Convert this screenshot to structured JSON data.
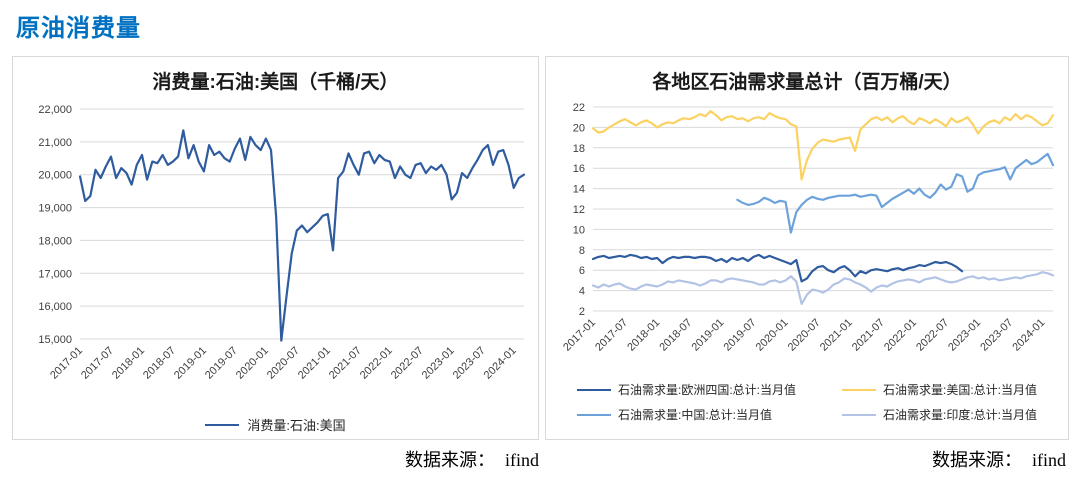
{
  "page": {
    "title": "原油消费量",
    "title_color": "#0070C0"
  },
  "sources": {
    "left": {
      "label": "数据来源：",
      "value": "ifind"
    },
    "right": {
      "label": "数据来源：",
      "value": "ifind"
    }
  },
  "colors": {
    "grid": "#D9D9D9",
    "axis_text": "#404040",
    "panel_border": "#D9D9D9"
  },
  "chart_data": [
    {
      "type": "line",
      "title": "消费量:石油:美国（千桶/天）",
      "ylabel": "",
      "ylim": [
        15000,
        22000
      ],
      "ystep": 1000,
      "y_tick_format": "comma",
      "grid": true,
      "legend_position": "bottom",
      "n_points": 87,
      "tick_every": 6,
      "x_tick_labels": [
        "2017-01",
        "2017-07",
        "2018-01",
        "2018-07",
        "2019-01",
        "2019-07",
        "2020-01",
        "2020-07",
        "2021-01",
        "2021-07",
        "2022-01",
        "2022-07",
        "2023-01",
        "2023-07",
        "2024-01"
      ],
      "series": [
        {
          "name": "消费量:石油:美国",
          "color": "#2F5B9F",
          "start": 0,
          "values": [
            19950,
            19200,
            19350,
            20150,
            19900,
            20250,
            20550,
            19900,
            20200,
            20050,
            19700,
            20300,
            20600,
            19850,
            20400,
            20350,
            20600,
            20300,
            20400,
            20550,
            21350,
            20500,
            20900,
            20400,
            20100,
            20900,
            20600,
            20700,
            20500,
            20400,
            20800,
            21100,
            20450,
            21150,
            20900,
            20750,
            21100,
            20750,
            18700,
            14950,
            16300,
            17600,
            18300,
            18450,
            18250,
            18400,
            18550,
            18750,
            18800,
            17700,
            19900,
            20100,
            20650,
            20300,
            20000,
            20650,
            20700,
            20350,
            20600,
            20450,
            20400,
            19900,
            20250,
            20000,
            19900,
            20300,
            20350,
            20050,
            20250,
            20150,
            20300,
            20000,
            19250,
            19450,
            20050,
            19900,
            20200,
            20450,
            20750,
            20900,
            20300,
            20700,
            20750,
            20300,
            19600,
            19900,
            20000
          ]
        }
      ]
    },
    {
      "type": "line",
      "title": "各地区石油需求量总计（百万桶/天）",
      "ylabel": "",
      "ylim": [
        2,
        22
      ],
      "ystep": 2,
      "y_tick_format": "plain",
      "grid": true,
      "legend_position": "bottom",
      "n_points": 87,
      "tick_every": 6,
      "x_tick_labels": [
        "2017-01",
        "2017-07",
        "2018-01",
        "2018-07",
        "2019-01",
        "2019-07",
        "2020-01",
        "2020-07",
        "2021-01",
        "2021-07",
        "2022-01",
        "2022-07",
        "2023-01",
        "2023-07",
        "2024-01"
      ],
      "series": [
        {
          "name": "石油需求量:欧洲四国:总计:当月值",
          "color": "#2F5B9F",
          "start": 0,
          "values": [
            7.1,
            7.3,
            7.4,
            7.2,
            7.3,
            7.4,
            7.3,
            7.5,
            7.4,
            7.2,
            7.3,
            7.1,
            7.2,
            6.7,
            7.1,
            7.3,
            7.2,
            7.3,
            7.3,
            7.2,
            7.3,
            7.3,
            7.2,
            6.9,
            7.1,
            6.8,
            7.2,
            7.0,
            7.2,
            6.9,
            7.3,
            7.5,
            7.2,
            7.4,
            7.2,
            7.0,
            6.8,
            6.6,
            7.0,
            4.9,
            5.2,
            5.9,
            6.3,
            6.4,
            6.0,
            5.8,
            6.2,
            6.4,
            6.0,
            5.4,
            5.9,
            5.7,
            6.0,
            6.1,
            6.0,
            5.9,
            6.1,
            6.2,
            6.0,
            6.2,
            6.3,
            6.5,
            6.4,
            6.6,
            6.8,
            6.7,
            6.8,
            6.6,
            6.3,
            5.9
          ]
        },
        {
          "name": "石油需求量:美国:总计:当月值",
          "color": "#FBD262",
          "start": 0,
          "values": [
            19.9,
            19.5,
            19.6,
            20.0,
            20.3,
            20.6,
            20.8,
            20.5,
            20.2,
            20.5,
            20.7,
            20.4,
            20.0,
            20.3,
            20.5,
            20.4,
            20.7,
            20.9,
            20.8,
            21.0,
            21.3,
            21.1,
            21.6,
            21.2,
            20.7,
            21.0,
            21.1,
            20.8,
            20.9,
            20.6,
            20.9,
            21.0,
            20.8,
            21.4,
            21.1,
            20.9,
            20.8,
            20.3,
            20.1,
            14.9,
            16.8,
            17.9,
            18.5,
            18.8,
            18.7,
            18.6,
            18.8,
            18.9,
            19.0,
            17.7,
            19.8,
            20.3,
            20.8,
            21.0,
            20.7,
            21.0,
            20.5,
            20.9,
            21.1,
            20.6,
            20.3,
            20.9,
            20.7,
            20.4,
            20.8,
            20.5,
            20.1,
            20.9,
            20.5,
            20.7,
            21.0,
            20.3,
            19.4,
            20.1,
            20.5,
            20.7,
            20.4,
            21.0,
            20.7,
            21.3,
            20.8,
            21.2,
            21.0,
            20.6,
            20.2,
            20.4,
            21.2
          ]
        },
        {
          "name": "石油需求量:中国:总计:当月值",
          "color": "#6CA2DC",
          "start": 27,
          "values": [
            12.9,
            12.6,
            12.4,
            12.5,
            12.7,
            13.1,
            12.9,
            12.6,
            12.8,
            12.7,
            9.7,
            11.7,
            12.4,
            12.9,
            13.2,
            13.0,
            12.9,
            13.1,
            13.2,
            13.3,
            13.3,
            13.3,
            13.4,
            13.2,
            13.3,
            13.4,
            13.3,
            12.2,
            12.6,
            13.0,
            13.3,
            13.6,
            13.9,
            13.5,
            14.0,
            13.4,
            13.1,
            13.6,
            14.4,
            13.9,
            14.2,
            15.4,
            15.2,
            13.7,
            14.0,
            15.3,
            15.6,
            15.7,
            15.8,
            15.9,
            16.1,
            14.9,
            16.0,
            16.4,
            16.8,
            16.4,
            16.6,
            17.0,
            17.4,
            16.3
          ]
        },
        {
          "name": "石油需求量:印度:总计:当月值",
          "color": "#B3C3E5",
          "start": 0,
          "values": [
            4.5,
            4.3,
            4.6,
            4.4,
            4.6,
            4.7,
            4.4,
            4.2,
            4.1,
            4.4,
            4.6,
            4.5,
            4.4,
            4.6,
            4.9,
            4.8,
            5.0,
            4.9,
            4.8,
            4.7,
            4.5,
            4.7,
            5.0,
            5.0,
            4.8,
            5.1,
            5.2,
            5.1,
            5.0,
            4.9,
            4.8,
            4.6,
            4.6,
            4.9,
            5.0,
            4.8,
            5.0,
            5.4,
            4.9,
            2.7,
            3.6,
            4.1,
            4.0,
            3.8,
            4.1,
            4.6,
            4.8,
            5.2,
            5.1,
            4.8,
            4.6,
            4.3,
            3.9,
            4.3,
            4.5,
            4.4,
            4.7,
            4.9,
            5.0,
            5.1,
            5.0,
            4.8,
            5.1,
            5.2,
            5.3,
            5.1,
            4.9,
            4.8,
            4.9,
            5.1,
            5.3,
            5.4,
            5.2,
            5.3,
            5.1,
            5.2,
            5.0,
            5.1,
            5.2,
            5.3,
            5.2,
            5.4,
            5.5,
            5.6,
            5.8,
            5.7,
            5.5
          ]
        }
      ]
    }
  ]
}
